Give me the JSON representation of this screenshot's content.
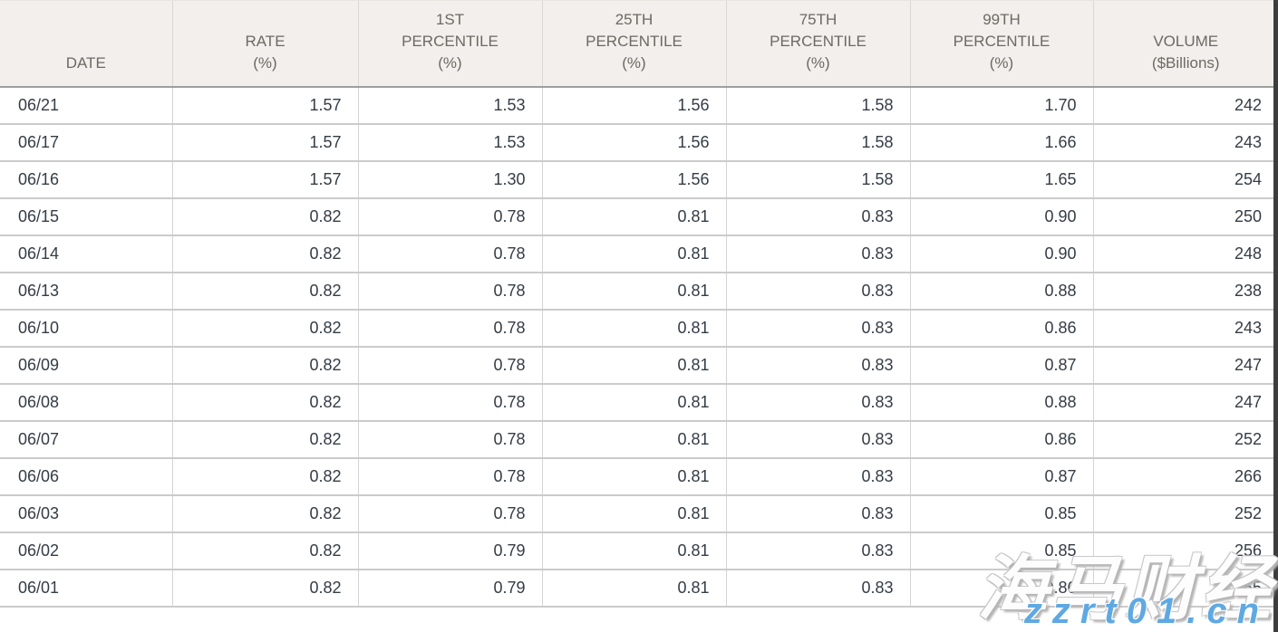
{
  "colors": {
    "header_bg": "#f2efec",
    "header_text": "#6d6963",
    "cell_text": "#343c45",
    "row_border": "#cbcbcb",
    "column_border": "#d4d4d4",
    "header_bottom_border": "#9e9e9e",
    "scroll_strip": "#3d3d3d",
    "watermark_site_color": "#5fa9e3"
  },
  "watermark": {
    "brand_text": "海马财经",
    "site_text": "zzrt01.cn"
  },
  "chart_data": {
    "type": "table",
    "title": "",
    "columns": [
      "DATE",
      "RATE\n(%)",
      "1ST\nPERCENTILE\n(%)",
      "25TH\nPERCENTILE\n(%)",
      "75TH\nPERCENTILE\n(%)",
      "99TH\nPERCENTILE\n(%)",
      "VOLUME\n($Billions)"
    ],
    "rows": [
      [
        "06/21",
        "1.57",
        "1.53",
        "1.56",
        "1.58",
        "1.70",
        "242"
      ],
      [
        "06/17",
        "1.57",
        "1.53",
        "1.56",
        "1.58",
        "1.66",
        "243"
      ],
      [
        "06/16",
        "1.57",
        "1.30",
        "1.56",
        "1.58",
        "1.65",
        "254"
      ],
      [
        "06/15",
        "0.82",
        "0.78",
        "0.81",
        "0.83",
        "0.90",
        "250"
      ],
      [
        "06/14",
        "0.82",
        "0.78",
        "0.81",
        "0.83",
        "0.90",
        "248"
      ],
      [
        "06/13",
        "0.82",
        "0.78",
        "0.81",
        "0.83",
        "0.88",
        "238"
      ],
      [
        "06/10",
        "0.82",
        "0.78",
        "0.81",
        "0.83",
        "0.86",
        "243"
      ],
      [
        "06/09",
        "0.82",
        "0.78",
        "0.81",
        "0.83",
        "0.87",
        "247"
      ],
      [
        "06/08",
        "0.82",
        "0.78",
        "0.81",
        "0.83",
        "0.88",
        "247"
      ],
      [
        "06/07",
        "0.82",
        "0.78",
        "0.81",
        "0.83",
        "0.86",
        "252"
      ],
      [
        "06/06",
        "0.82",
        "0.78",
        "0.81",
        "0.83",
        "0.87",
        "266"
      ],
      [
        "06/03",
        "0.82",
        "0.78",
        "0.81",
        "0.83",
        "0.85",
        "252"
      ],
      [
        "06/02",
        "0.82",
        "0.79",
        "0.81",
        "0.83",
        "0.85",
        "256"
      ],
      [
        "06/01",
        "0.82",
        "0.79",
        "0.81",
        "0.83",
        "0.86",
        "255"
      ]
    ]
  }
}
